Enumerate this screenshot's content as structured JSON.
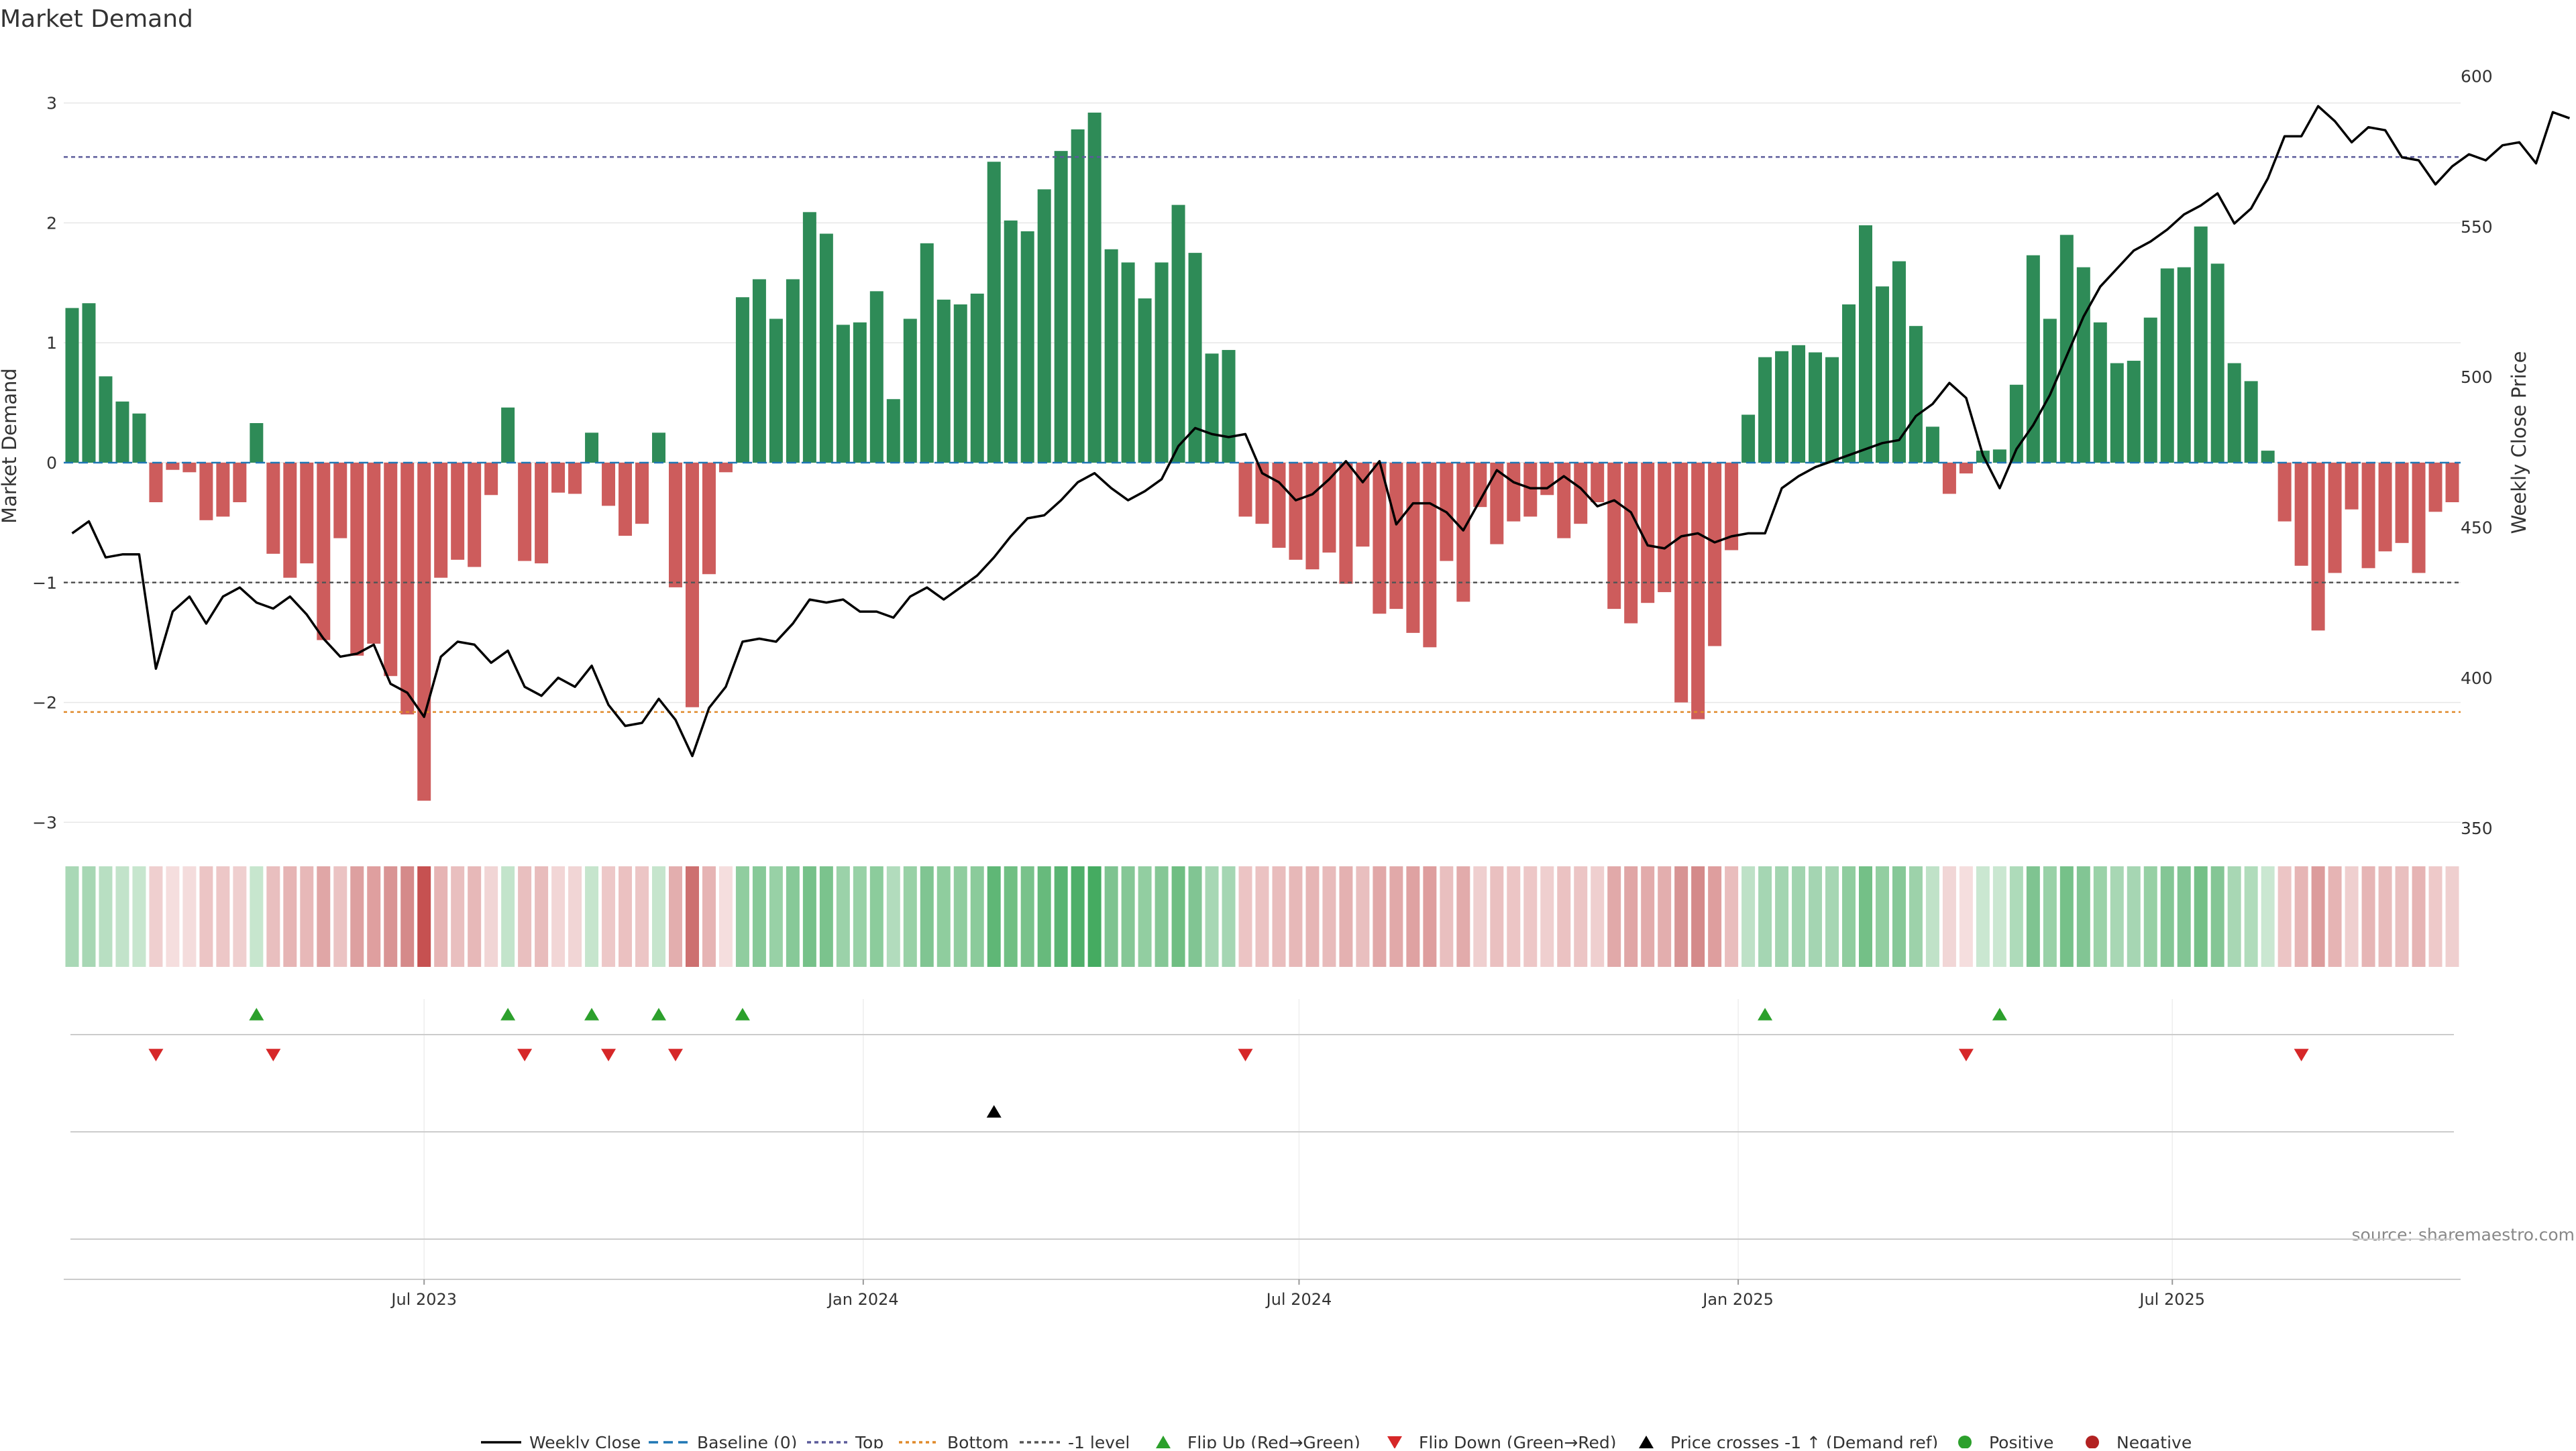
{
  "chart_data": {
    "type": "bar",
    "title": "Market Demand",
    "ylabel": "Market Demand",
    "y2label": "Weekly Close Price",
    "ylim": [
      -3.3,
      3.3
    ],
    "y2lim": [
      340,
      603
    ],
    "yticks": [
      3,
      2,
      1,
      0,
      -1,
      -2,
      -3
    ],
    "ytick_labels": [
      "3",
      "2",
      "1",
      "0",
      "−1",
      "−2",
      "−3"
    ],
    "y2ticks": [
      600,
      550,
      500,
      450,
      400,
      350
    ],
    "y2tick_labels": [
      "600",
      "550",
      "500",
      "450",
      "400",
      "350"
    ],
    "ref_lines": {
      "top": 2.55,
      "bottom": -2.08,
      "minus_one": -1.0
    },
    "x_labels": [
      {
        "index": 21.5,
        "label": "Jul 2023"
      },
      {
        "index": 47.7,
        "label": "Jan 2024"
      },
      {
        "index": 73.7,
        "label": "Jul 2024"
      },
      {
        "index": 99.9,
        "label": "Jan 2025"
      },
      {
        "index": 125.8,
        "label": "Jul 2025"
      }
    ],
    "series": [
      {
        "name": "Market Demand",
        "values": [
          1.29,
          1.33,
          0.72,
          0.51,
          0.41,
          -0.33,
          -0.06,
          -0.08,
          -0.48,
          -0.45,
          -0.33,
          0.33,
          -0.76,
          -0.96,
          -0.84,
          -1.48,
          -0.63,
          -1.61,
          -1.51,
          -1.78,
          -2.1,
          -2.82,
          -0.96,
          -0.81,
          -0.87,
          -0.27,
          0.46,
          -0.82,
          -0.84,
          -0.25,
          -0.26,
          0.25,
          -0.36,
          -0.61,
          -0.51,
          0.25,
          -1.04,
          -2.04,
          -0.93,
          -0.08,
          1.38,
          1.53,
          1.2,
          1.53,
          2.09,
          1.91,
          1.15,
          1.17,
          1.43,
          0.53,
          1.2,
          1.83,
          1.36,
          1.32,
          1.41,
          2.51,
          2.02,
          1.93,
          2.28,
          2.6,
          2.78,
          2.92,
          1.78,
          1.67,
          1.37,
          1.67,
          2.15,
          1.75,
          0.91,
          0.94,
          -0.45,
          -0.51,
          -0.71,
          -0.81,
          -0.89,
          -0.75,
          -1.01,
          -0.7,
          -1.26,
          -1.22,
          -1.42,
          -1.54,
          -0.82,
          -1.16,
          -0.37,
          -0.68,
          -0.49,
          -0.45,
          -0.27,
          -0.63,
          -0.51,
          -0.33,
          -1.22,
          -1.34,
          -1.17,
          -1.08,
          -2.0,
          -2.14,
          -1.53,
          -0.73,
          0.4,
          0.88,
          0.93,
          0.98,
          0.92,
          0.88,
          1.32,
          1.98,
          1.47,
          1.68,
          1.14,
          0.3,
          -0.26,
          -0.09,
          0.1,
          0.11,
          0.65,
          1.73,
          1.2,
          1.9,
          1.63,
          1.17,
          0.83,
          0.85,
          1.21,
          1.62,
          1.63,
          1.97,
          1.66,
          0.83,
          0.68,
          0.1,
          -0.49,
          -0.86,
          -1.4,
          -0.92,
          -0.39,
          -0.88,
          -0.74,
          -0.67,
          -0.92,
          -0.41,
          -0.33
        ]
      },
      {
        "name": "Weekly Close",
        "values": [
          448,
          452,
          440,
          441,
          441,
          403,
          422,
          427,
          418,
          427,
          430,
          425,
          423,
          427,
          421,
          413,
          407,
          408,
          411,
          398,
          395,
          387,
          407,
          412,
          411,
          405,
          409,
          397,
          394,
          400,
          397,
          404,
          391,
          384,
          385,
          393,
          386,
          374,
          390,
          397,
          412,
          413,
          412,
          418,
          426,
          425,
          426,
          422,
          422,
          420,
          427,
          430,
          426,
          430,
          434,
          440,
          447,
          453,
          454,
          459,
          465,
          468,
          463,
          459,
          462,
          466,
          477,
          483,
          481,
          480,
          481,
          468,
          465,
          459,
          461,
          466,
          472,
          465,
          472,
          451,
          458,
          458,
          455,
          449,
          459,
          469,
          465,
          463,
          463,
          467,
          463,
          457,
          459,
          455,
          444,
          443,
          447,
          448,
          445,
          447,
          448,
          448,
          463,
          467,
          470,
          472,
          474,
          476,
          478,
          479,
          487,
          491,
          498,
          493,
          474,
          463,
          476,
          484,
          494,
          507,
          520,
          530,
          536,
          542,
          545,
          549,
          554,
          557,
          561,
          551,
          556,
          566,
          580,
          580,
          590,
          585,
          578,
          583,
          582,
          573,
          572,
          564,
          570,
          574,
          572,
          577,
          578,
          571,
          588,
          586
        ]
      }
    ],
    "strip_colors": [
      "#a9d8b6",
      "#a7d7b4",
      "#b8dfc2",
      "#c2e3ca",
      "#c7e6ce",
      "#efcfcf",
      "#f5dede",
      "#f4dcdc",
      "#ecc5c5",
      "#edc7c7",
      "#efcfcf",
      "#c7e6ce",
      "#e9bfbf",
      "#e6b4b4",
      "#e7b8b8",
      "#e0a6a6",
      "#ebc3c3",
      "#dda0a0",
      "#df9f9f",
      "#d99494",
      "#d58a8a",
      "#c65151",
      "#e6b4b4",
      "#e9bfbf",
      "#e7b8b8",
      "#f1d5d5",
      "#c3e4cb",
      "#e9bfbf",
      "#e8bcbc",
      "#f2d6d6",
      "#f1d5d5",
      "#c6e5cd",
      "#edc8c8",
      "#ebc1c1",
      "#ecc5c5",
      "#c6e5cd",
      "#e3aeae",
      "#cd7070",
      "#e6b4b4",
      "#f5dede",
      "#90cd9f",
      "#87c998",
      "#98d1a6",
      "#87c998",
      "#76c189",
      "#7bc38d",
      "#9bd2a9",
      "#98d1a6",
      "#8ccc9c",
      "#b2dcbd",
      "#98d1a6",
      "#80c592",
      "#8fcd9e",
      "#90cd9f",
      "#8bcb9b",
      "#5fb776",
      "#70bf83",
      "#79c28b",
      "#67ba7c",
      "#59b472",
      "#4faf69",
      "#45ab61",
      "#7ec391",
      "#85c796",
      "#92cea1",
      "#85c796",
      "#6fbe82",
      "#81c593",
      "#a7d7b4",
      "#a5d6b3",
      "#ecc4c4",
      "#ebc2c2",
      "#e9bdbd",
      "#e7b8b8",
      "#e6b5b5",
      "#e8bbbb",
      "#e4b1b1",
      "#e9bfbf",
      "#e1a8a8",
      "#e1a9a9",
      "#dfa2a2",
      "#de9e9e",
      "#e9bfbf",
      "#e2abab",
      "#efcfcf",
      "#eac0c0",
      "#ecc5c5",
      "#edc7c7",
      "#efcfcf",
      "#ebc2c2",
      "#ecc5c5",
      "#efcfcf",
      "#e1a9a9",
      "#e0a6a6",
      "#e2abab",
      "#e3aeae",
      "#d79494",
      "#d48a8a",
      "#de9e9e",
      "#e9bdbd",
      "#bee1c7",
      "#a5d6b3",
      "#a3d5b1",
      "#a1d4af",
      "#a4d5b2",
      "#a6d6b3",
      "#90cd9f",
      "#74c087",
      "#92cea1",
      "#86c897",
      "#9dd2aa",
      "#c0e2c8",
      "#f1d6d6",
      "#f5dede",
      "#cae7d1",
      "#cae7d1",
      "#aedbba",
      "#7fc491",
      "#99d1a7",
      "#76c189",
      "#82c594",
      "#9ad2a8",
      "#a8d7b4",
      "#a6d6b3",
      "#96d0a4",
      "#84c695",
      "#82c594",
      "#74c087",
      "#84c695",
      "#a8d7b4",
      "#b0dcbb",
      "#cae7d1",
      "#ecc5c5",
      "#e6b5b5",
      "#dc9c9c",
      "#e6b4b4",
      "#efcfcf",
      "#e6b5b5",
      "#e8bbbb",
      "#e9bfbf",
      "#e6b4b4",
      "#eec9c9",
      "#efcfcf"
    ],
    "flip_up": [
      11,
      26,
      31,
      35,
      40,
      101,
      115
    ],
    "flip_down": [
      5,
      12,
      27,
      32,
      36,
      70,
      113,
      133
    ],
    "price_cross": [
      55
    ],
    "legend": [
      "Weekly Close",
      "Baseline (0)",
      "Top",
      "Bottom",
      "-1 level",
      "Flip Up (Red→Green)",
      "Flip Down (Green→Red)",
      "Price crosses -1 ↑ (Demand ref)",
      "Positive",
      "Negative"
    ],
    "source": "source: sharemaestro.com",
    "colors": {
      "positive_bar": "#2e8b57",
      "negative_bar": "#cd5c5c",
      "price_line": "#000000",
      "baseline": "#1f77b4",
      "top_line": "#5b5b9a",
      "bottom_line": "#e08a2a",
      "minus_one_line": "#555555",
      "flip_up": "#2ca02c",
      "flip_down": "#d62728",
      "price_cross": "#000000",
      "positive_dot": "#2ca02c",
      "negative_dot": "#b22222",
      "grid": "#e6e6e6",
      "text": "#333333",
      "source": "#888888"
    }
  }
}
